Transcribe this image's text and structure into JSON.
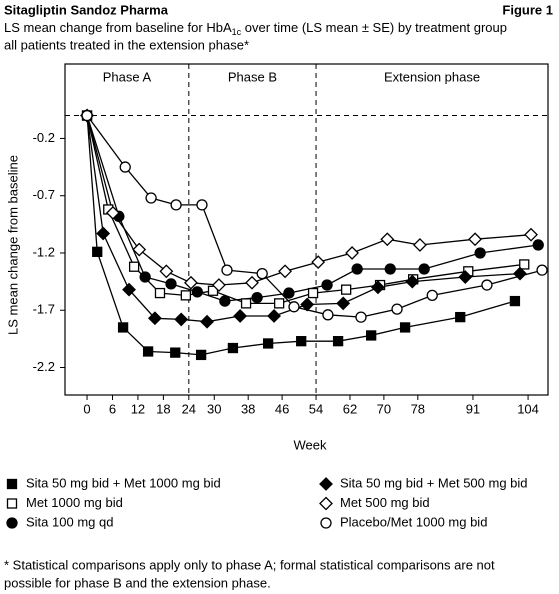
{
  "header": {
    "left": "Sitagliptin Sandoz Pharma",
    "right": "Figure 1"
  },
  "chart_data": {
    "type": "line",
    "title": [
      "LS mean change from baseline for HbA",
      "1c",
      " over time (LS mean ± SE) by treatment group"
    ],
    "subtitle": "all patients treated in the extension phase*",
    "x_label": "Week",
    "y_label": "LS mean change from baseline",
    "xlim": [
      -5.2,
      108.7
    ],
    "xticks": [
      0,
      6,
      12,
      18,
      24,
      30,
      38,
      46,
      54,
      62,
      70,
      78,
      91,
      104
    ],
    "ylim": [
      -2.44,
      0.45
    ],
    "yticks": [
      -0.2,
      -0.7,
      -1.2,
      -1.7,
      -2.2
    ],
    "reference_line": 0,
    "phase_dividers": [
      24,
      54
    ],
    "phases": [
      "Phase A",
      "Phase B",
      "Extension phase"
    ],
    "series": [
      {
        "name": "Sita 50 mg bid + Met 1000 mg bid",
        "color": "#000000",
        "marker": "square",
        "filled": true,
        "x": [
          0,
          2.4,
          8.5,
          14.4,
          20.8,
          26.9,
          34.4,
          42.7,
          50.5,
          59.2,
          67.0,
          75.0,
          88.0,
          100.9
        ],
        "values": [
          0,
          -1.19,
          -1.85,
          -2.06,
          -2.07,
          -2.09,
          -2.03,
          -1.99,
          -1.97,
          -1.97,
          -1.92,
          -1.85,
          -1.76,
          -1.62
        ]
      },
      {
        "name": "Met 1000 mg bid",
        "color": "#000000",
        "marker": "square",
        "filled": false,
        "x": [
          0,
          5.0,
          11.1,
          17.2,
          23.3,
          29.7,
          37.5,
          45.3,
          53.3,
          61.1,
          69.1,
          76.9,
          89.9,
          103.1
        ],
        "values": [
          0,
          -0.82,
          -1.32,
          -1.55,
          -1.57,
          -1.53,
          -1.64,
          -1.64,
          -1.55,
          -1.52,
          -1.48,
          -1.43,
          -1.36,
          -1.3
        ]
      },
      {
        "name": "Sita 100 mg qd",
        "color": "#000000",
        "marker": "circle",
        "filled": true,
        "x": [
          0,
          7.5,
          13.7,
          19.8,
          26.0,
          32.5,
          40.1,
          47.6,
          56.6,
          63.7,
          71.5,
          79.5,
          92.7,
          106.4
        ],
        "values": [
          0,
          -0.88,
          -1.41,
          -1.47,
          -1.54,
          -1.62,
          -1.59,
          -1.55,
          -1.48,
          -1.34,
          -1.34,
          -1.34,
          -1.2,
          -1.13
        ]
      },
      {
        "name": "Sita 50 mg bid + Met 500 mg bid",
        "color": "#000000",
        "marker": "diamond",
        "filled": true,
        "x": [
          0,
          3.8,
          9.9,
          16.0,
          22.2,
          28.3,
          36.1,
          44.1,
          51.9,
          60.4,
          68.6,
          76.7,
          89.2,
          102.1
        ],
        "values": [
          0,
          -1.03,
          -1.52,
          -1.77,
          -1.78,
          -1.8,
          -1.75,
          -1.75,
          -1.65,
          -1.64,
          -1.5,
          -1.45,
          -1.41,
          -1.38
        ]
      },
      {
        "name": "Met 500 mg bid",
        "color": "#000000",
        "marker": "diamond",
        "filled": false,
        "x": [
          0,
          6.1,
          12.3,
          18.7,
          24.5,
          31.1,
          38.9,
          46.7,
          54.5,
          62.5,
          70.8,
          78.5,
          91.5,
          104.7
        ],
        "values": [
          0,
          -0.85,
          -1.17,
          -1.36,
          -1.46,
          -1.48,
          -1.46,
          -1.36,
          -1.28,
          -1.2,
          -1.08,
          -1.13,
          -1.08,
          -1.04
        ]
      },
      {
        "name": "Placebo/Met 1000 mg bid",
        "color": "#000000",
        "marker": "circle",
        "filled": false,
        "x": [
          0,
          9.0,
          15.1,
          21.0,
          27.1,
          33.0,
          41.3,
          48.8,
          56.8,
          64.6,
          73.1,
          81.4,
          94.3,
          107.3
        ],
        "values": [
          0,
          -0.45,
          -0.72,
          -0.78,
          -0.78,
          -1.35,
          -1.38,
          -1.67,
          -1.74,
          -1.76,
          -1.69,
          -1.57,
          -1.48,
          -1.35
        ]
      }
    ]
  },
  "footnote": [
    "* Statistical comparisons apply only to phase A; formal statistical comparisons are not",
    "possible for phase B and the extension phase."
  ]
}
